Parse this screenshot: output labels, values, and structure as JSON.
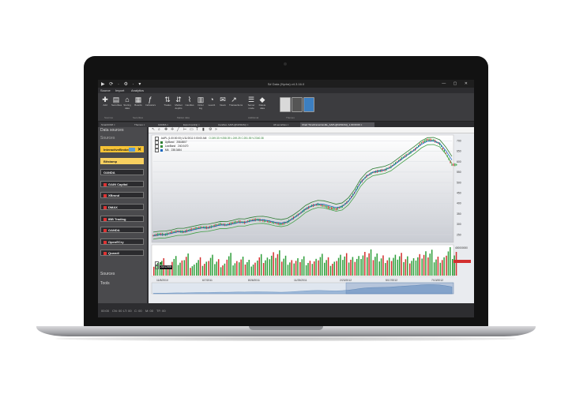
{
  "window": {
    "title": "S# Data (Hydra) v4.3.16.0",
    "quick_access": "▶ ⟳ · ⚙ · ▾",
    "controls": "— ▢ ✕"
  },
  "menu": [
    "Source",
    "Import",
    "Analytics"
  ],
  "ribbon": {
    "buttons": [
      {
        "icon": "✚",
        "label": "Add"
      },
      {
        "icon": "▤",
        "label": "Securities"
      },
      {
        "icon": "⌂",
        "label": "Storing data"
      },
      {
        "icon": "▦",
        "label": "Boards"
      },
      {
        "icon": "ƒ",
        "label": "Indicators"
      },
      {
        "icon": "⇅",
        "label": "Trades"
      },
      {
        "icon": "⇵",
        "label": "Market depths"
      },
      {
        "icon": "⌇",
        "label": "Candles"
      },
      {
        "icon": "▥",
        "label": "Order log"
      },
      {
        "icon": "◔",
        "label": "Level1"
      },
      {
        "icon": "✉",
        "label": "News"
      },
      {
        "icon": "↗",
        "label": "Transactions"
      },
      {
        "icon": "☰",
        "label": "Server mode"
      },
      {
        "icon": "◆",
        "label": "Delete data"
      }
    ],
    "groups": [
      "Sources",
      "Securities",
      "Market data",
      "Additional",
      "Themes"
    ]
  },
  "tabs": [
    "SmartCOM",
    "Themes",
    "OANDA",
    "Export (extra)",
    "Candles: AAPL@NASDAQ",
    "All securities",
    "Chart TimeFrameCandle_AAPL@NASDAQ_1.00:00:00"
  ],
  "left_panel": {
    "header": "Data sources",
    "section_title": "Sources",
    "sources": [
      {
        "name": "InteractiveBrokers",
        "state": "edit"
      },
      {
        "name": "Bitstamp",
        "state": "selected"
      },
      {
        "name": "OANDA",
        "state": ""
      },
      {
        "name": "GAIN Capital",
        "state": ""
      },
      {
        "name": "XBrand",
        "state": ""
      },
      {
        "name": "DMAX",
        "state": ""
      },
      {
        "name": "IBB Trading",
        "state": ""
      },
      {
        "name": "OANDA",
        "state": ""
      },
      {
        "name": "OpenECry",
        "state": ""
      },
      {
        "name": "Quandl",
        "state": ""
      }
    ],
    "bottom_sections": [
      "Sources",
      "Tools"
    ]
  },
  "chart_toolbar_icons": [
    "cursor",
    "zoom",
    "pan",
    "crosshair",
    "line",
    "ruler",
    "area",
    "text",
    "candles",
    "settings",
    "more"
  ],
  "chart_data": {
    "type": "line",
    "title": "AAPL (1.00:00:00) 1/11/2011 0:00:00 AM",
    "legend": [
      {
        "name": "UpBand",
        "value": "258.8807",
        "color": "#2e7d32"
      },
      {
        "name": "LowBand",
        "value": "240.0470",
        "color": "#388e3c"
      },
      {
        "name": "MA",
        "value": "238.3484",
        "color": "#1565c0"
      }
    ],
    "ohlc_text": "O:249.33 H:258.39 L:249.25 C:251.55 V:2340.38",
    "x_ticks": [
      "11/8/2010",
      "6/7/2011",
      "8/26/2011",
      "11/25/2011",
      "2/23/2012",
      "5/17/2012",
      "7/13/2012"
    ],
    "y_ticks": [
      "700",
      "650",
      "600",
      "550",
      "500",
      "450",
      "400",
      "350",
      "300",
      "250"
    ],
    "ylim": [
      220,
      720
    ],
    "x": [
      0,
      1,
      2,
      3,
      4,
      5,
      6,
      7,
      8,
      9,
      10,
      11,
      12,
      13,
      14,
      15,
      16,
      17,
      18,
      19,
      20,
      21,
      22,
      23,
      24,
      25,
      26,
      27,
      28,
      29,
      30,
      31,
      32,
      33,
      34,
      35,
      36,
      37,
      38,
      39,
      40,
      41,
      42,
      43,
      44,
      45,
      46,
      47,
      48,
      49
    ],
    "series": [
      {
        "name": "Price",
        "values": [
          245,
          252,
          250,
          260,
          266,
          263,
          272,
          280,
          285,
          283,
          292,
          300,
          296,
          305,
          312,
          308,
          318,
          322,
          318,
          312,
          306,
          300,
          310,
          330,
          350,
          372,
          388,
          395,
          388,
          378,
          372,
          385,
          410,
          450,
          500,
          530,
          548,
          555,
          560,
          575,
          598,
          620,
          640,
          660,
          690,
          705,
          702,
          685,
          640,
          585
        ]
      },
      {
        "name": "UpBand",
        "values": [
          262,
          266,
          267,
          272,
          280,
          280,
          286,
          293,
          299,
          300,
          306,
          313,
          312,
          318,
          326,
          325,
          332,
          337,
          338,
          333,
          326,
          322,
          328,
          345,
          366,
          390,
          405,
          414,
          412,
          404,
          396,
          402,
          426,
          465,
          515,
          548,
          566,
          572,
          578,
          590,
          612,
          634,
          655,
          676,
          700,
          715,
          716,
          705,
          670,
          625
        ]
      },
      {
        "name": "LowBand",
        "values": [
          228,
          233,
          234,
          240,
          246,
          247,
          252,
          259,
          264,
          266,
          272,
          279,
          279,
          284,
          291,
          291,
          298,
          303,
          304,
          299,
          292,
          288,
          294,
          311,
          332,
          356,
          371,
          380,
          378,
          370,
          362,
          368,
          392,
          431,
          481,
          514,
          532,
          538,
          544,
          556,
          578,
          600,
          621,
          642,
          666,
          681,
          682,
          671,
          636,
          591
        ]
      },
      {
        "name": "MA",
        "values": [
          245,
          249,
          250,
          256,
          263,
          263,
          269,
          276,
          282,
          283,
          289,
          296,
          296,
          301,
          308,
          308,
          315,
          320,
          321,
          316,
          309,
          305,
          311,
          328,
          349,
          373,
          388,
          397,
          395,
          387,
          379,
          385,
          409,
          448,
          498,
          531,
          549,
          555,
          561,
          573,
          595,
          617,
          638,
          659,
          683,
          698,
          699,
          688,
          653,
          608
        ]
      }
    ],
    "volume": {
      "legend_value": "21812898",
      "ymax_label": "400000000",
      "values": [
        40,
        55,
        30,
        62,
        48,
        70,
        35,
        58,
        44,
        66,
        52,
        38,
        72,
        46,
        60,
        50,
        41,
        68,
        57,
        74,
        80,
        63,
        49,
        55,
        61,
        47,
        53,
        69,
        58,
        44,
        66,
        71,
        59,
        62,
        75,
        83,
        70,
        64,
        57,
        66,
        72,
        61,
        55,
        68,
        77,
        82,
        60,
        58,
        90,
        75
      ]
    }
  },
  "status_bar": [
    "00:00",
    "CN: 00",
    "LT: 00",
    "C: 00",
    "M: 00",
    "TF: 00"
  ]
}
